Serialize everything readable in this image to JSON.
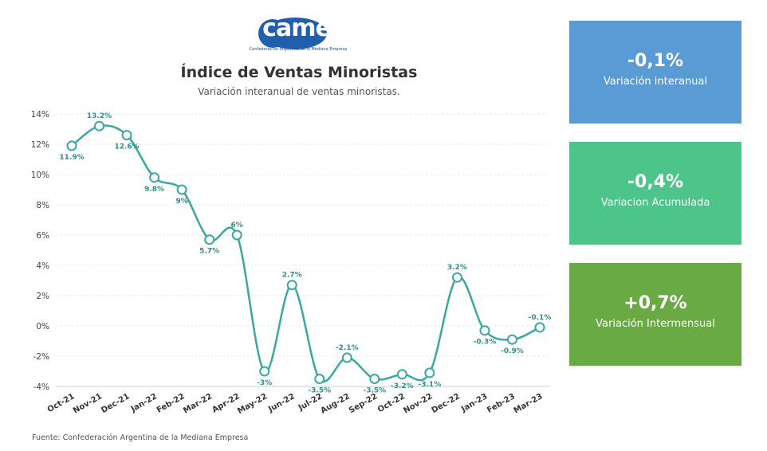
{
  "logo": {
    "text": "came",
    "subtitle": "Confederación Argentina de la Mediana Empresa"
  },
  "source": "Fuente: Confederación Argentina de la Mediana Empresa",
  "kpis": [
    {
      "value": "-0,1%",
      "label": "Variación interanual",
      "color": "#5b9bd5"
    },
    {
      "value": "-0,4%",
      "label": "Variacion Acumulada",
      "color": "#4dc48a"
    },
    {
      "value": "+0,7%",
      "label": "Variación Intermensual",
      "color": "#6aaa44"
    }
  ],
  "chart_data": {
    "type": "line",
    "title": "Índice de Ventas Minoristas",
    "subtitle": "Variación interanual de ventas minoristas.",
    "categories": [
      "Oct-21",
      "Nov-21",
      "Dec-21",
      "Jan-22",
      "Feb-22",
      "Mar-22",
      "Apr-22",
      "May-22",
      "Jun-22",
      "Jul-22",
      "Aug-22",
      "Sep-22",
      "Oct-22",
      "Nov-22",
      "Dec-22",
      "Jan-23",
      "Feb-23",
      "Mar-23"
    ],
    "series": [
      {
        "values": [
          11.9,
          13.2,
          12.6,
          9.8,
          9,
          5.7,
          6,
          -3,
          2.7,
          -3.5,
          -2.1,
          -3.5,
          -3.2,
          -3.1,
          3.2,
          -0.3,
          -0.9,
          -0.1
        ]
      }
    ],
    "data_labels": [
      "11.9%",
      "13.2%",
      "12.6%",
      "9.8%",
      "9%",
      "5.7%",
      "6%",
      "-3%",
      "2.7%",
      "-3.5%",
      "-2.1%",
      "-3.5%",
      "-3.2%",
      "-3.1%",
      "3.2%",
      "-0.3%",
      "-0.9%",
      "-0.1%"
    ],
    "yticks": [
      14,
      12,
      10,
      8,
      6,
      4,
      2,
      0,
      -2,
      -4
    ],
    "ytick_labels": [
      "14%",
      "12%",
      "10%",
      "8%",
      "6%",
      "4%",
      "2%",
      "0%",
      "-2%",
      "-4%"
    ],
    "ylim": [
      -4,
      14
    ],
    "grid": true,
    "line_color": "#3aa8a0"
  }
}
